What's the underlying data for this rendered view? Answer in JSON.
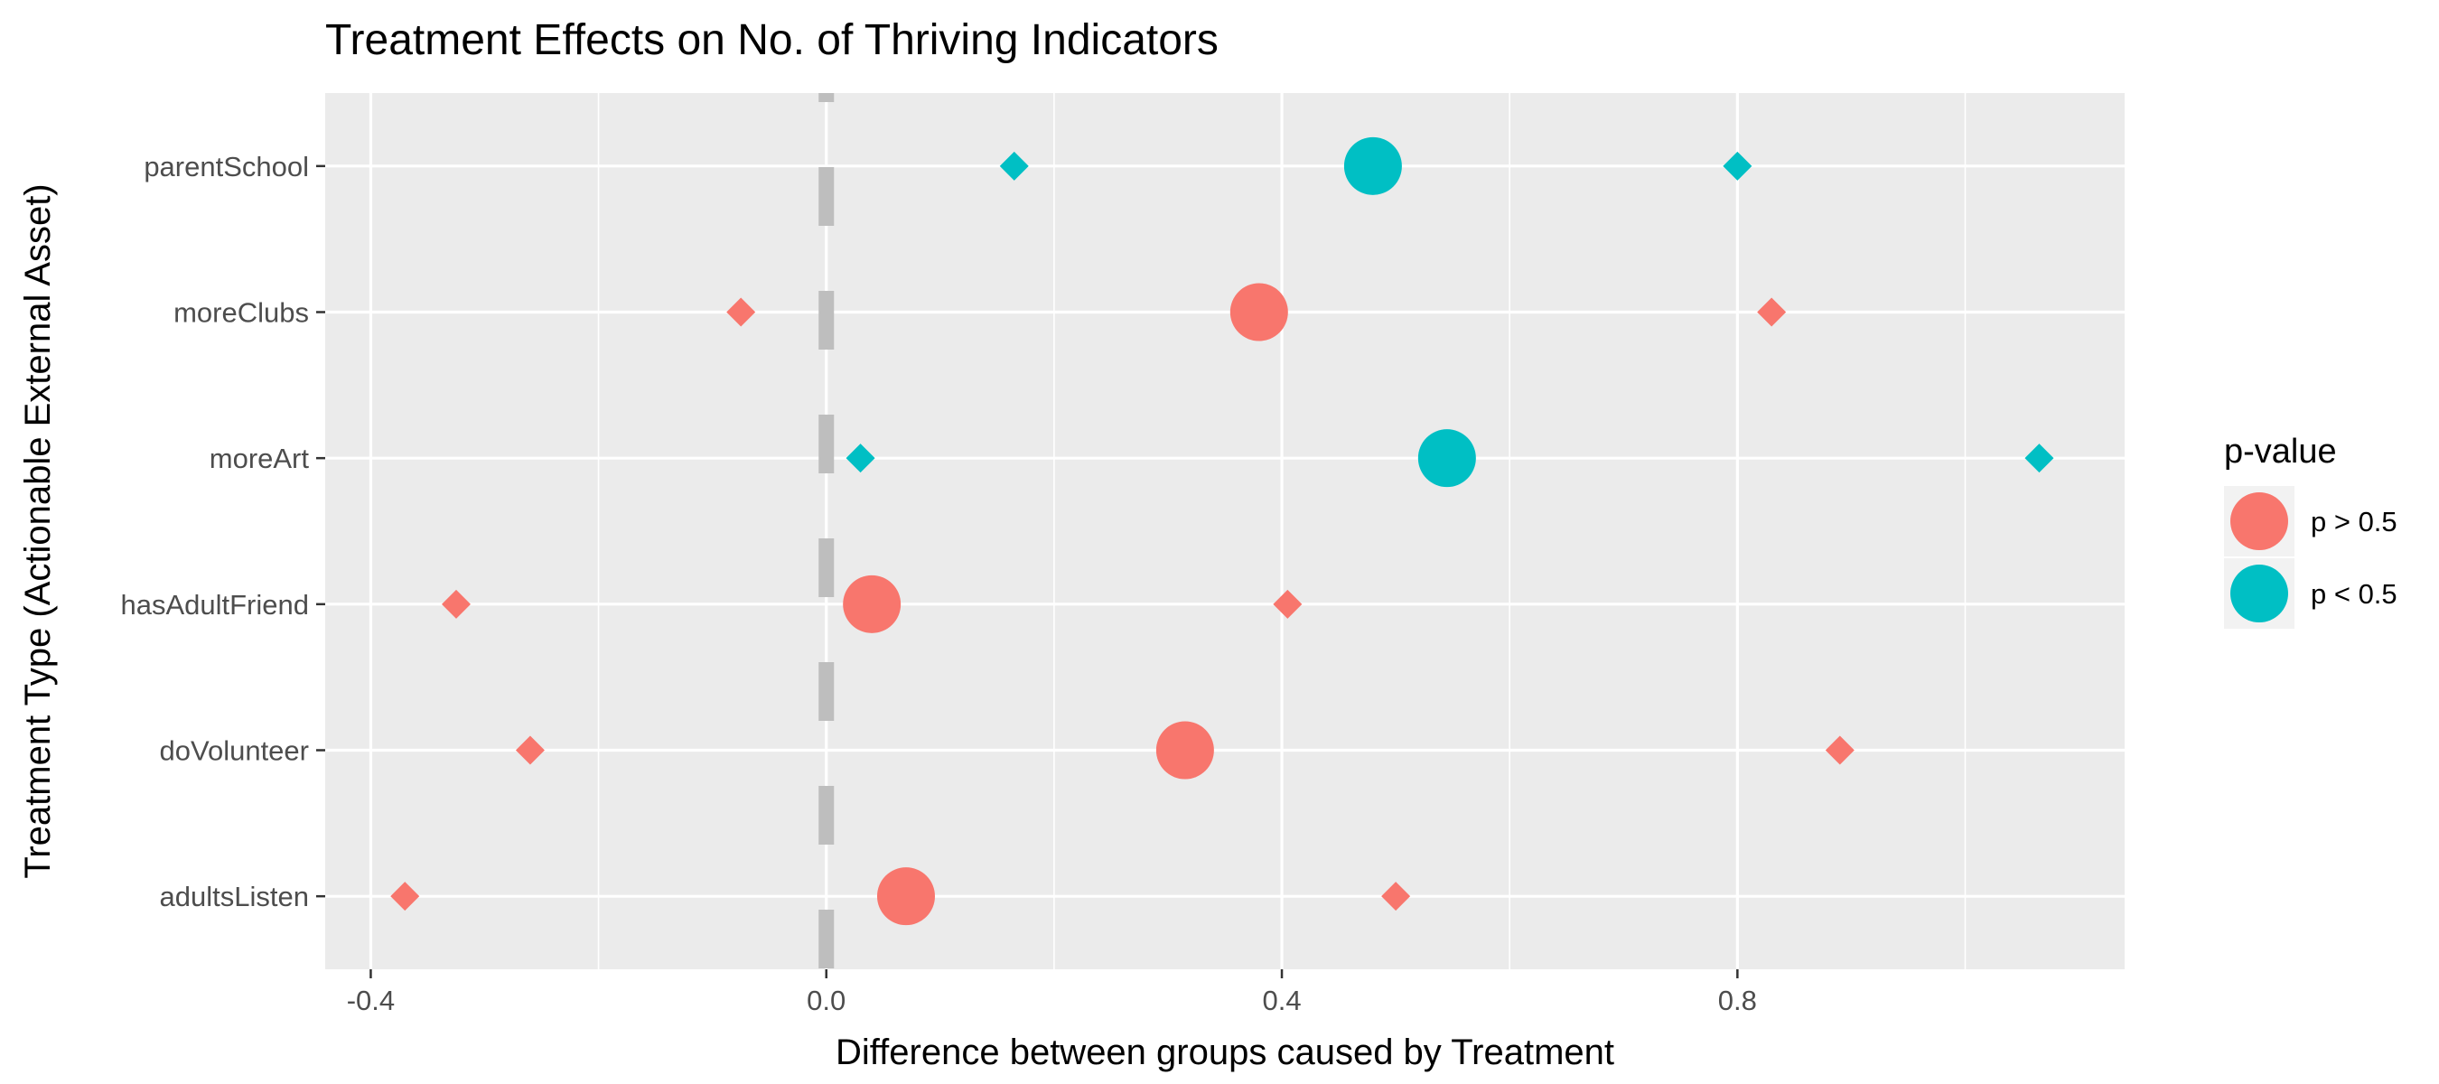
{
  "chart_data": {
    "type": "scatter",
    "title": "Treatment Effects on No. of Thriving Indicators",
    "xlabel": "Difference between groups caused by Treatment",
    "ylabel": "Treatment Type (Actionable External Asset)",
    "xlim": [
      -0.44,
      1.14
    ],
    "x_ticks": [
      -0.4,
      0.0,
      0.4,
      0.8
    ],
    "x_tick_labels": [
      "-0.4",
      "0.0",
      "0.4",
      "0.8"
    ],
    "categories": [
      "adultsListen",
      "doVolunteer",
      "hasAdultFriend",
      "moreArt",
      "moreClubs",
      "parentSchool"
    ],
    "reference_line": {
      "x": 0.0,
      "style": "dashed"
    },
    "grid": true,
    "legend": {
      "title": "p-value",
      "position": "right",
      "entries": [
        {
          "label": "p > 0.5",
          "color": "#F8766D"
        },
        {
          "label": "p < 0.5",
          "color": "#00BFC4"
        }
      ]
    },
    "colors": {
      "p > 0.5": "#F8766D",
      "p < 0.5": "#00BFC4",
      "panel": "#EBEBEB",
      "grid": "#FFFFFF",
      "reference": "#BEBEBE"
    },
    "points": [
      {
        "category": "parentSchool",
        "estimate": 0.48,
        "lower": 0.165,
        "upper": 0.8,
        "p_group": "p < 0.5"
      },
      {
        "category": "moreClubs",
        "estimate": 0.38,
        "lower": -0.075,
        "upper": 0.83,
        "p_group": "p > 0.5"
      },
      {
        "category": "moreArt",
        "estimate": 0.545,
        "lower": 0.03,
        "upper": 1.065,
        "p_group": "p < 0.5"
      },
      {
        "category": "hasAdultFriend",
        "estimate": 0.04,
        "lower": -0.325,
        "upper": 0.405,
        "p_group": "p > 0.5"
      },
      {
        "category": "doVolunteer",
        "estimate": 0.315,
        "lower": -0.26,
        "upper": 0.89,
        "p_group": "p > 0.5"
      },
      {
        "category": "adultsListen",
        "estimate": 0.07,
        "lower": -0.37,
        "upper": 0.5,
        "p_group": "p > 0.5"
      }
    ]
  }
}
